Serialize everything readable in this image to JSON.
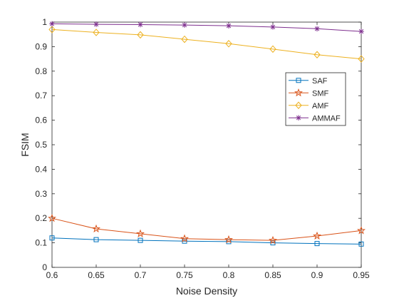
{
  "chart_data": {
    "type": "line",
    "title": "",
    "xlabel": "Noise Density",
    "ylabel": "FSIM",
    "xlim": [
      0.6,
      0.95
    ],
    "ylim": [
      0,
      1
    ],
    "x": [
      0.6,
      0.65,
      0.7,
      0.75,
      0.8,
      0.85,
      0.9,
      0.95
    ],
    "x_ticks": [
      "0.6",
      "0.65",
      "0.7",
      "0.75",
      "0.8",
      "0.85",
      "0.9",
      "0.95"
    ],
    "y_ticks": [
      "0",
      "0.1",
      "0.2",
      "0.3",
      "0.4",
      "0.5",
      "0.6",
      "0.7",
      "0.8",
      "0.9",
      "1"
    ],
    "grid": false,
    "legend_position": "upper-right",
    "series": [
      {
        "name": "SAF",
        "color": "#0072BD",
        "marker": "square",
        "values": [
          0.12,
          0.113,
          0.11,
          0.107,
          0.105,
          0.1,
          0.097,
          0.095
        ]
      },
      {
        "name": "SMF",
        "color": "#D95319",
        "marker": "pentagram",
        "values": [
          0.2,
          0.157,
          0.137,
          0.117,
          0.113,
          0.11,
          0.128,
          0.15
        ]
      },
      {
        "name": "AMF",
        "color": "#EDB120",
        "marker": "diamond",
        "values": [
          0.97,
          0.958,
          0.948,
          0.93,
          0.912,
          0.89,
          0.867,
          0.85
        ]
      },
      {
        "name": "AMMAF",
        "color": "#7E2F8E",
        "marker": "asterisk",
        "values": [
          0.993,
          0.991,
          0.99,
          0.988,
          0.985,
          0.98,
          0.973,
          0.962
        ]
      }
    ]
  }
}
